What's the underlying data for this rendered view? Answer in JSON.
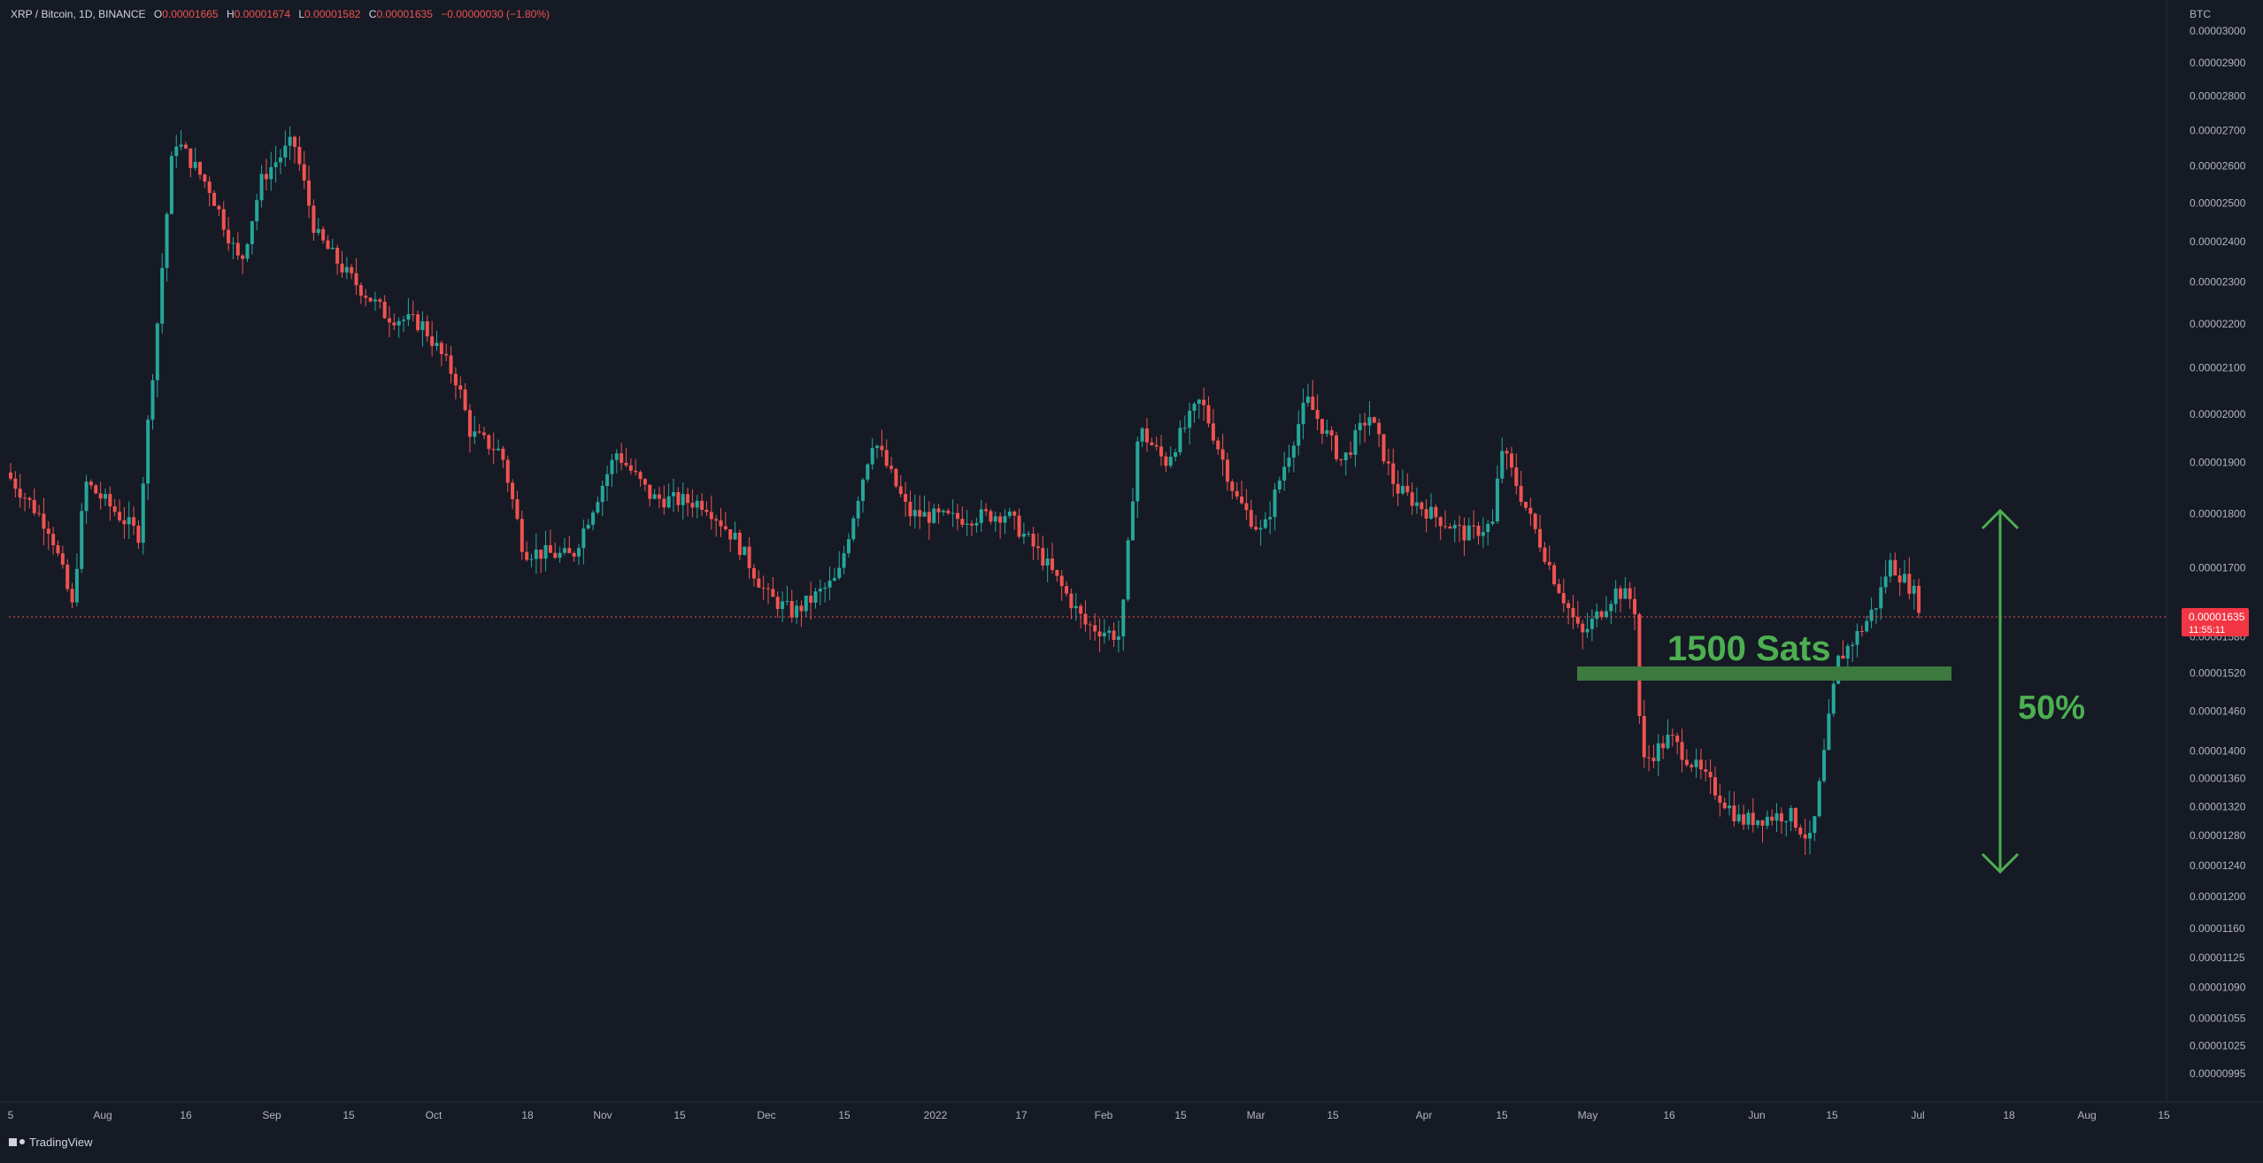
{
  "header": {
    "symbol": "XRP / Bitcoin, 1D, BINANCE",
    "open_label": "O",
    "open": "0.00001665",
    "high_label": "H",
    "high": "0.00001674",
    "low_label": "L",
    "low": "0.00001582",
    "close_label": "C",
    "close": "0.00001635",
    "change": "−0.00000030 (−1.80%)"
  },
  "currency": "BTC",
  "footer": {
    "brand": "TradingView"
  },
  "last_price": {
    "value": "0.00001635",
    "countdown": "11:55:11"
  },
  "colors": {
    "background": "#161a25",
    "up": "#26a69a",
    "down": "#ef5350",
    "annotation": "#4caf50",
    "axis_text": "#b2b5be"
  },
  "chart_data": {
    "type": "candlestick",
    "title": "",
    "y_axis": {
      "side": "right",
      "scale": "log",
      "ticks": [
        "0.00003000",
        "0.00002900",
        "0.00002800",
        "0.00002700",
        "0.00002600",
        "0.00002500",
        "0.00002400",
        "0.00002300",
        "0.00002200",
        "0.00002100",
        "0.00002000",
        "0.00001900",
        "0.00001800",
        "0.00001700",
        "0.00001580",
        "0.00001520",
        "0.00001460",
        "0.00001400",
        "0.00001360",
        "0.00001320",
        "0.00001280",
        "0.00001240",
        "0.00001200",
        "0.00001160",
        "0.00001125",
        "0.00001090",
        "0.00001055",
        "0.00001025",
        "0.00000995"
      ]
    },
    "x_axis": {
      "ticks": [
        "5",
        "Aug",
        "16",
        "Sep",
        "15",
        "Oct",
        "18",
        "Nov",
        "15",
        "Dec",
        "15",
        "2022",
        "17",
        "Feb",
        "15",
        "Mar",
        "15",
        "Apr",
        "15",
        "May",
        "16",
        "Jun",
        "15",
        "Jul",
        "18",
        "Aug",
        "15"
      ]
    },
    "grid": false,
    "candles_approx_close": [
      {
        "date": "Jul 5",
        "close": 1.88e-05
      },
      {
        "date": "Jul 15",
        "close": 1.78e-05
      },
      {
        "date": "Jul 22",
        "close": 1.64e-05
      },
      {
        "date": "Aug 1",
        "close": 1.88e-05
      },
      {
        "date": "Aug 8",
        "close": 1.76e-05
      },
      {
        "date": "Aug 12",
        "close": 2.22e-05
      },
      {
        "date": "Aug 16",
        "close": 2.68e-05
      },
      {
        "date": "Aug 22",
        "close": 2.62e-05
      },
      {
        "date": "Aug 30",
        "close": 2.34e-05
      },
      {
        "date": "Sep 5",
        "close": 2.58e-05
      },
      {
        "date": "Sep 10",
        "close": 2.66e-05
      },
      {
        "date": "Sep 15",
        "close": 2.44e-05
      },
      {
        "date": "Sep 22",
        "close": 2.36e-05
      },
      {
        "date": "Oct 1",
        "close": 2.22e-05
      },
      {
        "date": "Oct 10",
        "close": 2.08e-05
      },
      {
        "date": "Oct 18",
        "close": 1.94e-05
      },
      {
        "date": "Oct 25",
        "close": 1.72e-05
      },
      {
        "date": "Nov 1",
        "close": 1.72e-05
      },
      {
        "date": "Nov 8",
        "close": 1.92e-05
      },
      {
        "date": "Nov 15",
        "close": 1.81e-05
      },
      {
        "date": "Nov 22",
        "close": 1.84e-05
      },
      {
        "date": "Dec 1",
        "close": 1.72e-05
      },
      {
        "date": "Dec 8",
        "close": 1.61e-05
      },
      {
        "date": "Dec 15",
        "close": 1.7e-05
      },
      {
        "date": "Dec 20",
        "close": 1.96e-05
      },
      {
        "date": "Dec 25",
        "close": 1.8e-05
      },
      {
        "date": "Jan 1",
        "close": 1.77e-05
      },
      {
        "date": "Jan 10",
        "close": 1.8e-05
      },
      {
        "date": "Jan 17",
        "close": 1.75e-05
      },
      {
        "date": "Jan 24",
        "close": 1.6e-05
      },
      {
        "date": "Feb 1",
        "close": 1.59e-05
      },
      {
        "date": "Feb 8",
        "close": 1.98e-05
      },
      {
        "date": "Feb 15",
        "close": 1.9e-05
      },
      {
        "date": "Feb 22",
        "close": 1.88e-05
      },
      {
        "date": "Mar 1",
        "close": 1.82e-05
      },
      {
        "date": "Mar 8",
        "close": 1.84e-05
      },
      {
        "date": "Mar 12",
        "close": 2.02e-05
      },
      {
        "date": "Mar 20",
        "close": 1.95e-05
      },
      {
        "date": "Apr 1",
        "close": 1.78e-05
      },
      {
        "date": "Apr 10",
        "close": 1.76e-05
      },
      {
        "date": "Apr 15",
        "close": 1.93e-05
      },
      {
        "date": "Apr 22",
        "close": 1.74e-05
      },
      {
        "date": "May 1",
        "close": 1.58e-05
      },
      {
        "date": "May 8",
        "close": 1.65e-05
      },
      {
        "date": "May 12",
        "close": 1.38e-05
      },
      {
        "date": "May 20",
        "close": 1.4e-05
      },
      {
        "date": "Jun 1",
        "close": 1.32e-05
      },
      {
        "date": "Jun 10",
        "close": 1.28e-05
      },
      {
        "date": "Jun 15",
        "close": 1.5e-05
      },
      {
        "date": "Jun 20",
        "close": 1.6e-05
      },
      {
        "date": "Jun 24",
        "close": 1.7e-05
      },
      {
        "date": "Jul 1",
        "close": 1.635e-05
      }
    ],
    "annotations": [
      {
        "type": "zone",
        "label": "1500 Sats",
        "price": 1.5e-05
      },
      {
        "type": "range-arrow",
        "label": "50%",
        "from": 1.24e-05,
        "to": 1.81e-05
      }
    ]
  }
}
